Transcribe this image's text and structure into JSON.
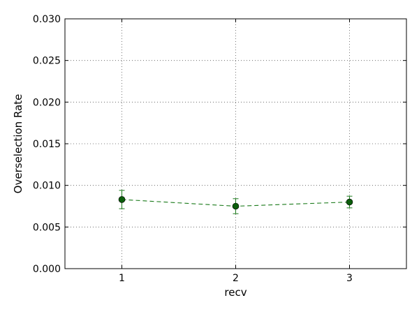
{
  "chart_data": {
    "type": "line",
    "title": "",
    "xlabel": "recv",
    "ylabel": "Overselection Rate",
    "xlim": [
      0.5,
      3.5
    ],
    "ylim": [
      0.0,
      0.03
    ],
    "grid": true,
    "x_ticks": [
      1,
      2,
      3
    ],
    "x_tick_labels": [
      "1",
      "2",
      "3"
    ],
    "y_ticks": [
      0.0,
      0.005,
      0.01,
      0.015,
      0.02,
      0.025,
      0.03
    ],
    "y_tick_labels": [
      "0.000",
      "0.005",
      "0.010",
      "0.015",
      "0.020",
      "0.025",
      "0.030"
    ],
    "series": [
      {
        "color": "#1a7a1a",
        "marker_color": "#0b5d0b",
        "line_style": "dashed",
        "marker": "circle",
        "x": [
          1,
          2,
          3
        ],
        "y": [
          0.0083,
          0.0075,
          0.008
        ],
        "yerr": [
          0.0011,
          0.0009,
          0.0007
        ]
      }
    ]
  }
}
